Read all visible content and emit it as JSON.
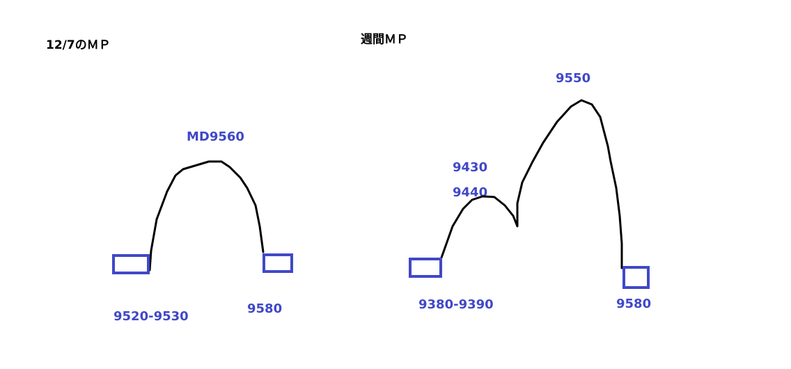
{
  "colors": {
    "boxes_and_labels": "#4048c8",
    "lines": "#000000",
    "background": "#ffffff"
  },
  "left_panel": {
    "title": "12/7のＭＰ",
    "peak_label": "MD9560",
    "left_label": "9520-9530",
    "right_label": "9580"
  },
  "right_panel": {
    "title": "週間ＭＰ",
    "peak_label": "9550",
    "mid_label_upper": "9430",
    "mid_label_lower": "9440",
    "left_label": "9380-9390",
    "right_label": "9580"
  }
}
